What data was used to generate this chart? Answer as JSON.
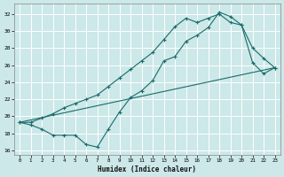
{
  "xlabel": "Humidex (Indice chaleur)",
  "background_color": "#cce8e8",
  "grid_color": "#ffffff",
  "line_color": "#1a6b6b",
  "xlim": [
    -0.5,
    23.5
  ],
  "ylim": [
    15.5,
    33.2
  ],
  "xticks": [
    0,
    1,
    2,
    3,
    4,
    5,
    6,
    7,
    8,
    9,
    10,
    11,
    12,
    13,
    14,
    15,
    16,
    17,
    18,
    19,
    20,
    21,
    22,
    23
  ],
  "yticks": [
    16,
    18,
    20,
    22,
    24,
    26,
    28,
    30,
    32
  ],
  "line1_x": [
    0,
    1,
    2,
    3,
    4,
    5,
    6,
    7,
    8,
    9,
    10,
    11,
    12,
    13,
    14,
    15,
    16,
    17,
    18,
    19,
    20,
    21,
    22,
    23
  ],
  "line1_y": [
    19.3,
    19.0,
    18.5,
    17.8,
    17.8,
    17.8,
    16.7,
    16.4,
    18.5,
    20.5,
    22.2,
    23.0,
    24.2,
    26.5,
    27.0,
    28.8,
    29.5,
    30.4,
    32.2,
    31.7,
    30.7,
    26.3,
    25.0,
    25.7
  ],
  "line2_x": [
    0,
    1,
    2,
    3,
    4,
    5,
    6,
    7,
    8,
    9,
    10,
    11,
    12,
    13,
    14,
    15,
    16,
    17,
    18,
    19,
    20,
    21,
    22,
    23
  ],
  "line2_y": [
    19.3,
    19.3,
    19.8,
    20.3,
    21.0,
    21.5,
    22.0,
    22.5,
    23.5,
    24.5,
    25.5,
    26.5,
    27.5,
    29.0,
    30.5,
    31.5,
    31.0,
    31.5,
    32.0,
    31.0,
    30.7,
    28.0,
    26.8,
    25.7
  ],
  "line3_x": [
    0,
    23
  ],
  "line3_y": [
    19.3,
    25.7
  ]
}
